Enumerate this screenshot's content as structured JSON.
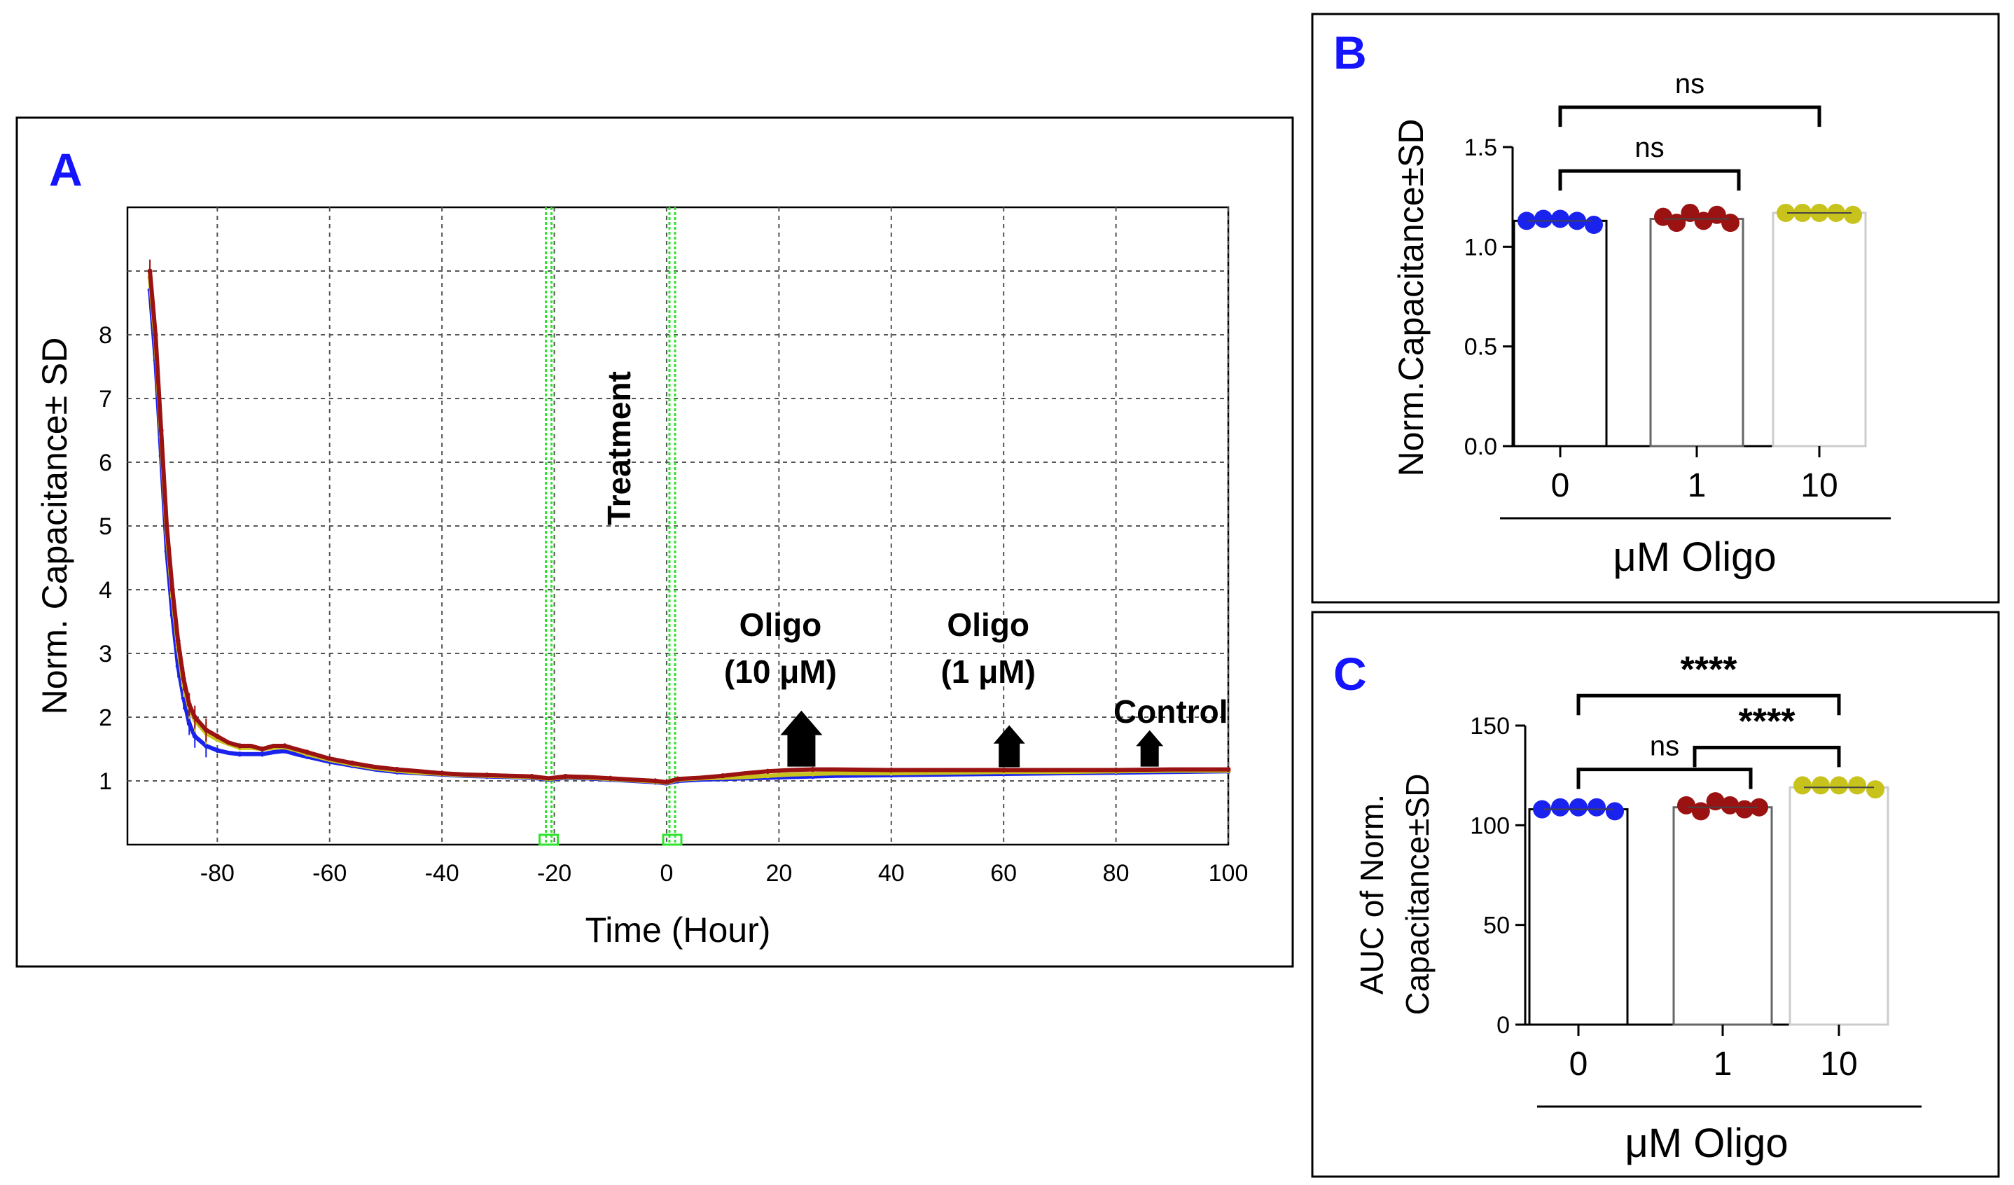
{
  "colors": {
    "blue": "#1a22ee",
    "red": "#9b1212",
    "yellow": "#c8c21c",
    "green": "#2ee32e",
    "panel_letter": "#1414ff"
  },
  "chart_data": [
    {
      "id": "A",
      "type": "line",
      "panel_label": "A",
      "xlabel": "Time (Hour)",
      "ylabel": "Norm. Capacitance± SD",
      "xlim": [
        -96,
        100
      ],
      "ylim": [
        0,
        10
      ],
      "xticks": [
        "-80",
        "-60",
        "-40",
        "-20",
        "0",
        "20",
        "40",
        "60",
        "80",
        "100"
      ],
      "xtick_values": [
        -80,
        -60,
        -40,
        -20,
        0,
        20,
        40,
        60,
        80,
        100
      ],
      "yticks": [
        "1",
        "2",
        "3",
        "4",
        "5",
        "6",
        "7",
        "8"
      ],
      "ytick_values": [
        1,
        2,
        3,
        4,
        5,
        6,
        7,
        8
      ],
      "grid": true,
      "markers": [
        {
          "x": -21,
          "label": ""
        },
        {
          "x": 1,
          "label": "Treatment"
        }
      ],
      "annotations": [
        {
          "line1": "Oligo",
          "line2": "(10 μM)",
          "x": 24
        },
        {
          "line1": "Oligo",
          "line2": "(1 μM)",
          "x": 61
        },
        {
          "line1": "Control",
          "line2": "",
          "x": 86
        }
      ],
      "series": [
        {
          "name": "Oligo 10 μM",
          "color": "#9b1212",
          "x": [
            -92,
            -91,
            -90,
            -89,
            -88,
            -87,
            -86,
            -85,
            -84,
            -82,
            -80,
            -78,
            -76,
            -74,
            -72,
            -70,
            -68,
            -66,
            -64,
            -60,
            -56,
            -52,
            -48,
            -44,
            -40,
            -36,
            -32,
            -28,
            -24,
            -21,
            -18,
            -14,
            -10,
            -6,
            -2,
            0,
            2,
            6,
            10,
            14,
            18,
            22,
            26,
            30,
            40,
            50,
            60,
            70,
            80,
            90,
            100
          ],
          "y": [
            9.0,
            8.0,
            6.5,
            5.0,
            4.0,
            3.2,
            2.6,
            2.2,
            2.0,
            1.8,
            1.7,
            1.6,
            1.55,
            1.55,
            1.5,
            1.55,
            1.55,
            1.5,
            1.45,
            1.35,
            1.28,
            1.22,
            1.18,
            1.15,
            1.12,
            1.1,
            1.09,
            1.08,
            1.07,
            1.04,
            1.07,
            1.06,
            1.04,
            1.02,
            1.0,
            0.98,
            1.03,
            1.05,
            1.08,
            1.12,
            1.15,
            1.17,
            1.18,
            1.18,
            1.17,
            1.17,
            1.17,
            1.17,
            1.17,
            1.18,
            1.18
          ]
        },
        {
          "name": "Oligo 1 μM",
          "color": "#c8c21c",
          "x": [
            -92,
            -91,
            -90,
            -89,
            -88,
            -87,
            -86,
            -85,
            -84,
            -82,
            -80,
            -78,
            -76,
            -74,
            -72,
            -70,
            -68,
            -66,
            -64,
            -60,
            -56,
            -52,
            -48,
            -44,
            -40,
            -36,
            -32,
            -28,
            -24,
            -21,
            -18,
            -14,
            -10,
            -6,
            -2,
            0,
            2,
            6,
            10,
            14,
            18,
            22,
            26,
            30,
            40,
            50,
            60,
            70,
            80,
            90,
            100
          ],
          "y": [
            8.9,
            7.9,
            6.4,
            4.9,
            3.9,
            3.1,
            2.5,
            2.15,
            1.95,
            1.75,
            1.65,
            1.58,
            1.52,
            1.52,
            1.5,
            1.52,
            1.53,
            1.48,
            1.42,
            1.33,
            1.26,
            1.2,
            1.16,
            1.13,
            1.11,
            1.09,
            1.08,
            1.07,
            1.06,
            1.03,
            1.06,
            1.05,
            1.03,
            1.01,
            0.99,
            0.97,
            1.02,
            1.04,
            1.05,
            1.06,
            1.08,
            1.1,
            1.11,
            1.12,
            1.12,
            1.13,
            1.14,
            1.14,
            1.15,
            1.16,
            1.16
          ]
        },
        {
          "name": "Control",
          "color": "#1a22ee",
          "x": [
            -92,
            -91,
            -90,
            -89,
            -88,
            -87,
            -86,
            -85,
            -84,
            -82,
            -80,
            -78,
            -76,
            -74,
            -72,
            -70,
            -68,
            -66,
            -64,
            -60,
            -56,
            -52,
            -48,
            -44,
            -40,
            -36,
            -32,
            -28,
            -24,
            -21,
            -18,
            -14,
            -10,
            -6,
            -2,
            0,
            2,
            6,
            10,
            14,
            18,
            22,
            26,
            30,
            40,
            50,
            60,
            70,
            80,
            90,
            100
          ],
          "y": [
            8.7,
            7.6,
            6.1,
            4.6,
            3.6,
            2.8,
            2.3,
            1.9,
            1.7,
            1.55,
            1.48,
            1.44,
            1.42,
            1.42,
            1.42,
            1.45,
            1.47,
            1.42,
            1.38,
            1.3,
            1.24,
            1.18,
            1.14,
            1.12,
            1.1,
            1.08,
            1.07,
            1.06,
            1.05,
            1.02,
            1.05,
            1.04,
            1.02,
            1.0,
            0.98,
            0.96,
            1.0,
            1.02,
            1.03,
            1.04,
            1.05,
            1.06,
            1.07,
            1.08,
            1.09,
            1.1,
            1.11,
            1.12,
            1.13,
            1.14,
            1.15
          ]
        }
      ]
    },
    {
      "id": "B",
      "type": "bar",
      "panel_label": "B",
      "categories": [
        "0",
        "1",
        "10"
      ],
      "values": [
        1.13,
        1.14,
        1.17
      ],
      "colors": [
        "#1a22ee",
        "#9b1212",
        "#c8c21c"
      ],
      "points": [
        [
          1.13,
          1.14,
          1.14,
          1.13,
          1.11
        ],
        [
          1.15,
          1.12,
          1.17,
          1.13,
          1.16,
          1.12
        ],
        [
          1.17,
          1.17,
          1.17,
          1.17,
          1.16
        ]
      ],
      "xlabel": "μM Oligo",
      "ylabel": "Norm.Capacitance±SD",
      "ylim": [
        0,
        1.5
      ],
      "yticks": [
        "0.0",
        "0.5",
        "1.0",
        "1.5"
      ],
      "ytick_values": [
        0,
        0.5,
        1.0,
        1.5
      ],
      "significance": [
        {
          "from": 0,
          "to": 1,
          "label": "ns",
          "level": 1.38
        },
        {
          "from": 0,
          "to": 2,
          "label": "ns",
          "level": 1.7
        }
      ]
    },
    {
      "id": "C",
      "type": "bar",
      "panel_label": "C",
      "categories": [
        "0",
        "1",
        "10"
      ],
      "values": [
        108,
        109,
        119
      ],
      "colors": [
        "#1a22ee",
        "#9b1212",
        "#c8c21c"
      ],
      "points": [
        [
          108,
          109,
          109,
          109,
          107
        ],
        [
          110,
          107,
          112,
          110,
          108,
          109
        ],
        [
          120,
          120,
          120,
          120,
          118
        ]
      ],
      "xlabel": "μM Oligo",
      "ylabel_line1": "AUC of Norm.",
      "ylabel_line2": "Capacitance±SD",
      "ylim": [
        0,
        150
      ],
      "yticks": [
        "0",
        "50",
        "100",
        "150"
      ],
      "ytick_values": [
        0,
        50,
        100,
        150
      ],
      "significance": [
        {
          "from": 0,
          "to": 1,
          "label": "ns",
          "level": 128
        },
        {
          "from": 1,
          "to": 2,
          "label": "****",
          "level": 139
        },
        {
          "from": 0,
          "to": 2,
          "label": "****",
          "level": 165
        }
      ]
    }
  ]
}
